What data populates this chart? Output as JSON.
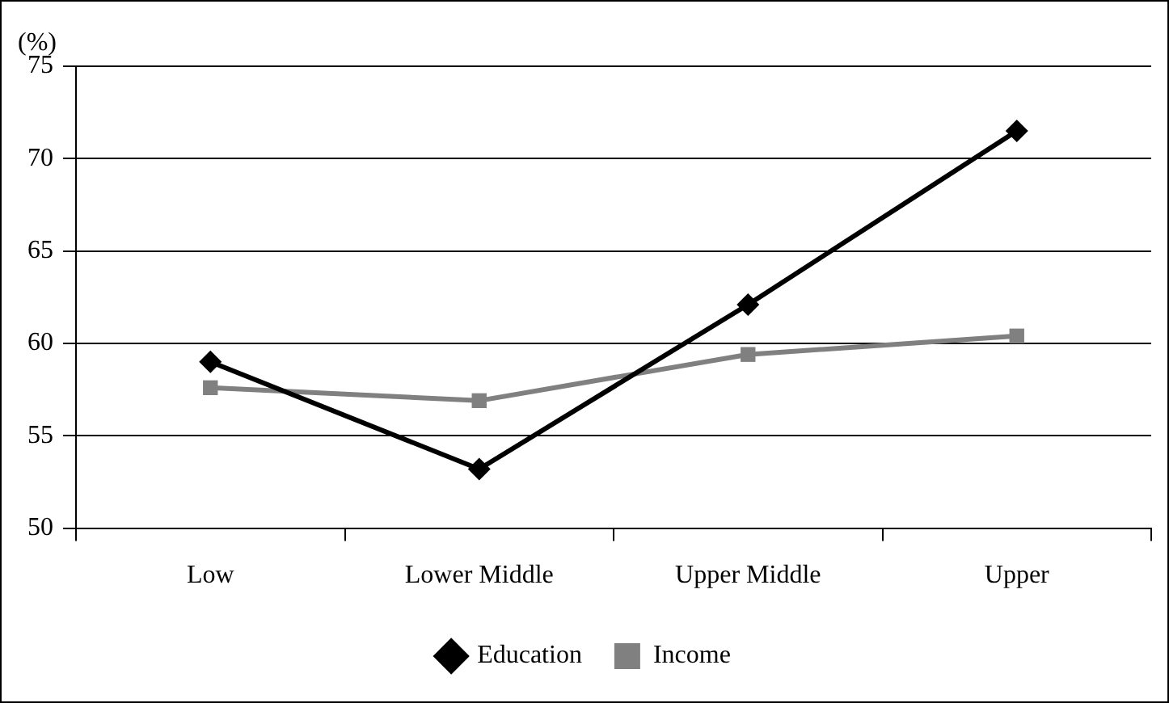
{
  "chart_data": {
    "type": "line",
    "ylabel": "(%)",
    "categories": [
      "Low",
      "Lower Middle",
      "Upper Middle",
      "Upper"
    ],
    "series": [
      {
        "name": "Education",
        "color": "#000000",
        "marker": "diamond",
        "values": [
          59.0,
          53.2,
          62.1,
          71.5
        ]
      },
      {
        "name": "Income",
        "color": "#808080",
        "marker": "square",
        "values": [
          57.6,
          56.9,
          59.4,
          60.4
        ]
      }
    ],
    "ylim": [
      50,
      75
    ],
    "yticks": [
      50,
      55,
      60,
      65,
      70,
      75
    ],
    "grid": "y",
    "legend": "bottom",
    "line_style": "solid"
  }
}
